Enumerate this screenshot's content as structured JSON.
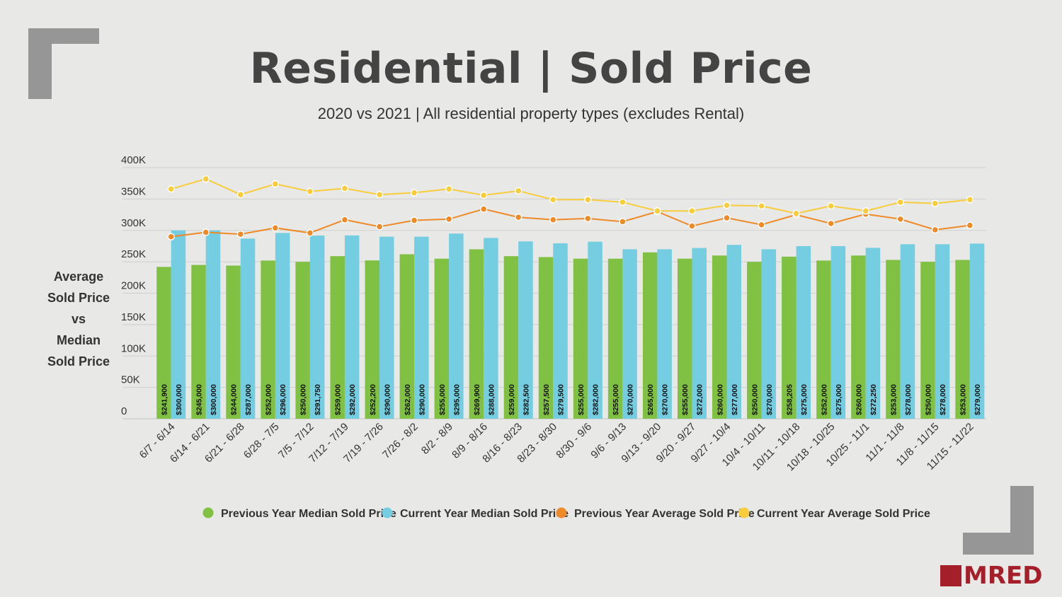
{
  "title": "Residential | Sold Price",
  "subtitle": "2020 vs 2021 | All residential property types (excludes Rental)",
  "ylabel_lines": [
    "Average",
    "Sold Price",
    "vs",
    "Median",
    "Sold Price"
  ],
  "logo_text": "MRED",
  "colors": {
    "prev_median": "#80c042",
    "curr_median": "#74cde0",
    "prev_avg": "#ee8a27",
    "curr_avg": "#f8cc3a"
  },
  "chart_data": {
    "type": "bar",
    "ylim": [
      0,
      400000
    ],
    "yticks": [
      0,
      50000,
      100000,
      150000,
      200000,
      250000,
      300000,
      350000,
      400000
    ],
    "ytick_labels": [
      "0",
      "50K",
      "100K",
      "150K",
      "200K",
      "250K",
      "300K",
      "350K",
      "400K"
    ],
    "grid": true,
    "legend": "bottom",
    "categories": [
      "6/7 - 6/14",
      "6/14 - 6/21",
      "6/21 - 6/28",
      "6/28 - 7/5",
      "7/5 - 7/12",
      "7/12 - 7/19",
      "7/19 - 7/26",
      "7/26 - 8/2",
      "8/2 - 8/9",
      "8/9 - 8/16",
      "8/16 - 8/23",
      "8/23 - 8/30",
      "8/30 - 9/6",
      "9/6 - 9/13",
      "9/13 - 9/20",
      "9/20 - 9/27",
      "9/27 - 10/4",
      "10/4 - 10/11",
      "10/11 - 10/18",
      "10/18 - 10/25",
      "10/25 - 11/1",
      "11/1 - 11/8",
      "11/8 - 11/15",
      "11/15 - 11/22"
    ],
    "series": [
      {
        "name": "Previous Year Median Sold Price",
        "type": "bar",
        "values": [
          241900,
          245000,
          244000,
          252000,
          250000,
          259000,
          252200,
          262000,
          255000,
          269900,
          259000,
          257500,
          255000,
          255000,
          265000,
          255000,
          260000,
          250000,
          258205,
          252000,
          260000,
          253000,
          250000,
          253000
        ],
        "labels": [
          "$241,900",
          "$245,000",
          "$244,000",
          "$252,000",
          "$250,000",
          "$259,000",
          "$252,200",
          "$262,000",
          "$255,000",
          "$269,900",
          "$259,000",
          "$257,500",
          "$255,000",
          "$255,000",
          "$265,000",
          "$255,000",
          "$260,000",
          "$250,000",
          "$258,205",
          "$252,000",
          "$260,000",
          "$253,000",
          "$250,000",
          "$253,000"
        ]
      },
      {
        "name": "Current Year Median Sold Price",
        "type": "bar",
        "values": [
          300000,
          300000,
          287000,
          296000,
          291750,
          292000,
          290000,
          290000,
          295000,
          288000,
          282500,
          279500,
          282000,
          270000,
          270000,
          272000,
          277000,
          270000,
          275000,
          275000,
          272250,
          278000,
          278000,
          279000
        ],
        "labels": [
          "$300,000",
          "$300,000",
          "$287,000",
          "$296,000",
          "$291,750",
          "$292,000",
          "$290,000",
          "$290,000",
          "$295,000",
          "$288,000",
          "$282,500",
          "$279,500",
          "$282,000",
          "$270,000",
          "$270,000",
          "$272,000",
          "$277,000",
          "$270,000",
          "$275,000",
          "$275,000",
          "$272,250",
          "$278,000",
          "$278,000",
          "$279,000"
        ]
      },
      {
        "name": "Previous Year Average Sold Price",
        "type": "line",
        "values": [
          290000,
          297000,
          294000,
          304000,
          296000,
          317000,
          306000,
          316000,
          318000,
          334000,
          321000,
          317000,
          319000,
          314000,
          330000,
          307000,
          320000,
          309000,
          325000,
          311000,
          326000,
          318000,
          301000,
          308000
        ]
      },
      {
        "name": "Current Year Average Sold Price",
        "type": "line",
        "values": [
          366000,
          382000,
          357000,
          374000,
          362000,
          367000,
          357000,
          360000,
          366000,
          356000,
          363000,
          349000,
          349000,
          345000,
          331000,
          331000,
          340000,
          339000,
          327000,
          339000,
          331000,
          345000,
          343000,
          349000
        ]
      }
    ]
  }
}
